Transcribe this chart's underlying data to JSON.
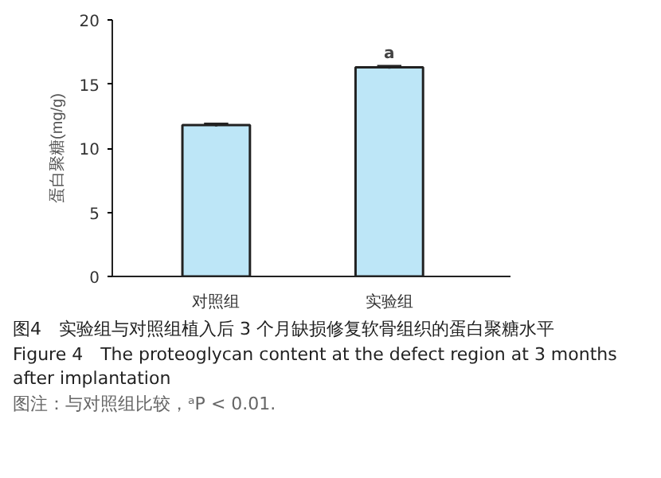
{
  "chart_data": {
    "type": "bar",
    "title": "图4　实验组与对照组植入后 3 个月缺损修复软骨组织的蛋白聚糖水平",
    "subtitle": "Figure 4　The proteoglycan content at the defect region at 3 months after implantation",
    "ylabel": "蛋白聚糖(mg/g)",
    "categories": [
      "对照组",
      "实验组"
    ],
    "values": [
      11.8,
      16.3
    ],
    "errors": [
      0.1,
      0.1
    ],
    "color": "#bde6f7",
    "ylim": [
      0,
      20
    ],
    "yticks": [
      0,
      5,
      10,
      15,
      20
    ],
    "grid": false,
    "annotations": [
      {
        "text": "a",
        "x": "实验组",
        "y": 16.4
      },
      "图注：与对照组比较，ᵃP < 0.01."
    ]
  }
}
